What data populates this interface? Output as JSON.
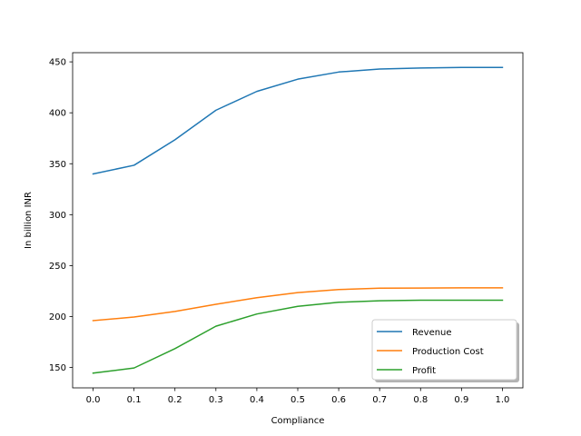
{
  "chart_data": {
    "type": "line",
    "title": "",
    "xlabel": "Compliance",
    "ylabel": "In billion INR",
    "x": [
      0.0,
      0.1,
      0.2,
      0.3,
      0.4,
      0.5,
      0.6,
      0.7,
      0.8,
      0.9,
      1.0
    ],
    "xticks": [
      "0.0",
      "0.1",
      "0.2",
      "0.3",
      "0.4",
      "0.5",
      "0.6",
      "0.7",
      "0.8",
      "0.9",
      "1.0"
    ],
    "yticks": [
      "150",
      "200",
      "250",
      "300",
      "350",
      "400",
      "450"
    ],
    "xlim": [
      -0.05,
      1.05
    ],
    "ylim": [
      130,
      459
    ],
    "grid": false,
    "legend_position": "bottom-right",
    "series": [
      {
        "name": "Revenue",
        "color": "#1f77b4",
        "values": [
          340.0,
          348.5,
          373.5,
          402.5,
          421.0,
          433.0,
          440.0,
          443.0,
          444.0,
          444.5,
          444.5
        ]
      },
      {
        "name": "Production Cost",
        "color": "#ff7f0e",
        "values": [
          196.0,
          199.5,
          205.0,
          212.0,
          218.5,
          223.5,
          226.5,
          227.8,
          228.0,
          228.2,
          228.2
        ]
      },
      {
        "name": "Profit",
        "color": "#2ca02c",
        "values": [
          144.5,
          149.5,
          168.5,
          190.5,
          202.5,
          210.0,
          214.0,
          215.5,
          216.0,
          216.0,
          216.0
        ]
      }
    ]
  }
}
